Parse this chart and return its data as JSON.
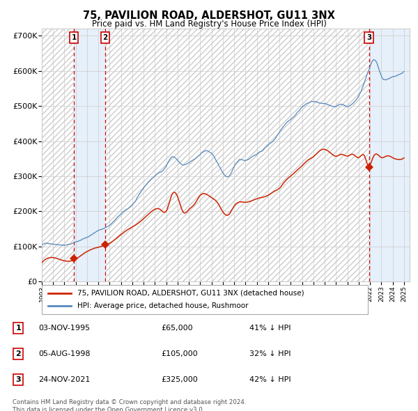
{
  "title": "75, PAVILION ROAD, ALDERSHOT, GU11 3NX",
  "subtitle": "Price paid vs. HM Land Registry's House Price Index (HPI)",
  "ylim": [
    0,
    720000
  ],
  "yticks": [
    0,
    100000,
    200000,
    300000,
    400000,
    500000,
    600000,
    700000
  ],
  "ytick_labels": [
    "£0",
    "£100K",
    "£200K",
    "£300K",
    "£400K",
    "£500K",
    "£600K",
    "£700K"
  ],
  "xlim_start": 1993.0,
  "xlim_end": 2025.5,
  "xticks": [
    1993,
    1994,
    1995,
    1996,
    1997,
    1998,
    1999,
    2000,
    2001,
    2002,
    2003,
    2004,
    2005,
    2006,
    2007,
    2008,
    2009,
    2010,
    2011,
    2012,
    2013,
    2014,
    2015,
    2016,
    2017,
    2018,
    2019,
    2020,
    2021,
    2022,
    2023,
    2024,
    2025
  ],
  "hpi_color": "#5588bb",
  "price_color": "#cc2200",
  "sale_marker_color": "#cc2200",
  "transaction_color_fill": "#ddeeff",
  "transaction_color_line": "#cc0000",
  "grid_color": "#cccccc",
  "sale_events": [
    {
      "label": "1",
      "date_num": 1995.84,
      "price": 65000,
      "desc": "03-NOV-1995",
      "amount": "£65,000",
      "hpi_note": "41% ↓ HPI"
    },
    {
      "label": "2",
      "date_num": 1998.59,
      "price": 105000,
      "desc": "05-AUG-1998",
      "amount": "£105,000",
      "hpi_note": "32% ↓ HPI"
    },
    {
      "label": "3",
      "date_num": 2021.9,
      "price": 325000,
      "desc": "24-NOV-2021",
      "amount": "£325,000",
      "hpi_note": "42% ↓ HPI"
    }
  ],
  "legend_entries": [
    {
      "label": "75, PAVILION ROAD, ALDERSHOT, GU11 3NX (detached house)",
      "color": "#cc2200"
    },
    {
      "label": "HPI: Average price, detached house, Rushmoor",
      "color": "#5588bb"
    }
  ],
  "footnote": "Contains HM Land Registry data © Crown copyright and database right 2024.\nThis data is licensed under the Open Government Licence v3.0.",
  "background_color": "#ffffff"
}
